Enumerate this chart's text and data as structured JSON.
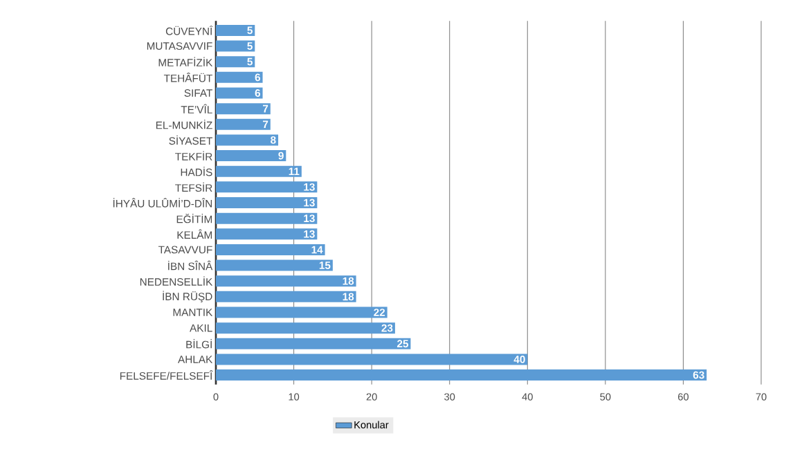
{
  "chart_data": {
    "type": "bar",
    "orientation": "horizontal",
    "categories": [
      "CÜVEYNÎ",
      "MUTASAVVIF",
      "METAFİZİK",
      "TEHÂFÜT",
      "SIFAT",
      "TE’VÎL",
      "EL-MUNKİZ",
      "SİYASET",
      "TEKFİR",
      "HADİS",
      "TEFSİR",
      "İHYÂU ULÛMİ’D-DÎN",
      "EĞİTİM",
      "KELÂM",
      "TASAVVUF",
      "İBN SÎNÂ",
      "NEDENSELLİK",
      "İBN RÜŞD",
      "MANTIK",
      "AKIL",
      "BİLGİ",
      "AHLAK",
      "FELSEFE/FELSEFÎ"
    ],
    "series": [
      {
        "name": "Konular",
        "color": "#5b9bd5",
        "values": [
          5,
          5,
          5,
          6,
          6,
          7,
          7,
          8,
          9,
          11,
          13,
          13,
          13,
          13,
          14,
          15,
          18,
          18,
          22,
          23,
          25,
          40,
          63
        ]
      }
    ],
    "xlim": [
      0,
      70
    ],
    "xticks": [
      0,
      10,
      20,
      30,
      40,
      50,
      60,
      70
    ],
    "grid": "x",
    "legend": "bottom",
    "data_labels": true
  }
}
